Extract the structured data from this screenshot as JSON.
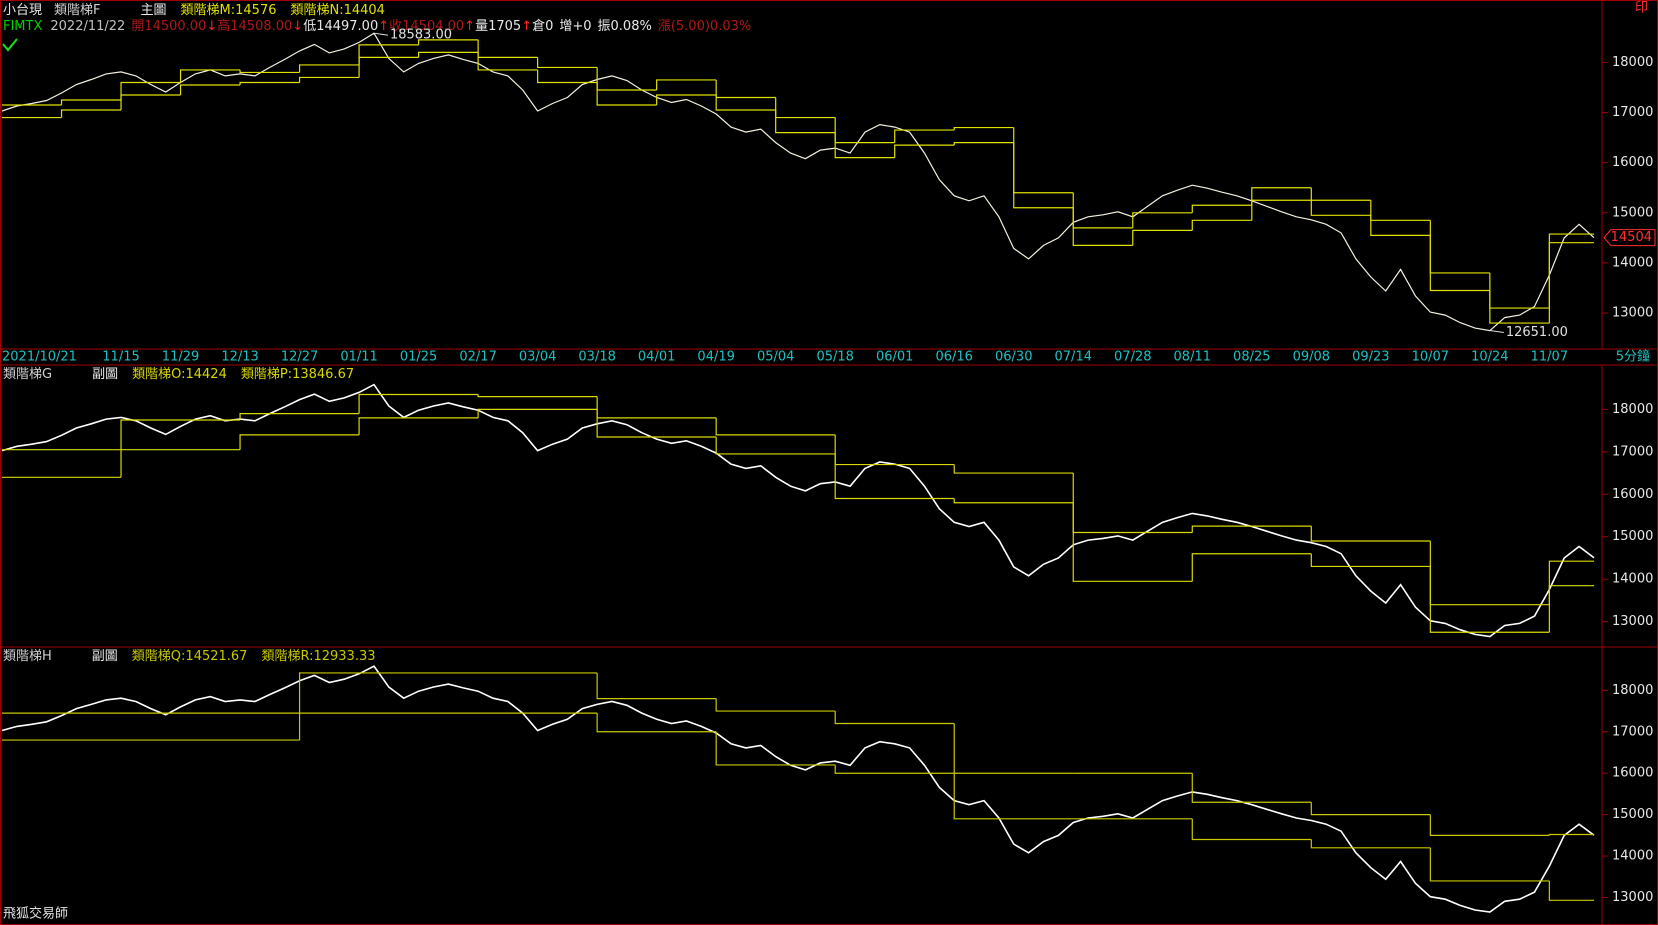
{
  "print_button": "印",
  "brand": "飛狐交易師",
  "chart_data": [
    {
      "type": "line",
      "title": "小台現",
      "indicator": "類階梯F",
      "view": "主圖",
      "symbol": "FIMTX",
      "symbol_color": "#00d000",
      "date": "2022/11/22",
      "quote": [
        {
          "text": "開14500.00",
          "color": "#b01818"
        },
        {
          "text": "↓",
          "color": "#ff2020"
        },
        {
          "text": "高14508.00",
          "color": "#b01818"
        },
        {
          "text": "↓",
          "color": "#ff2020"
        },
        {
          "text": "低14497.00",
          "color": "#e8e8e8"
        },
        {
          "text": "↑",
          "color": "#ff2020"
        },
        {
          "text": "收14504.00",
          "color": "#b01818"
        },
        {
          "text": "↑",
          "color": "#ff2020"
        },
        {
          "text": "量1705",
          "color": "#e8e8e8"
        },
        {
          "text": "↑",
          "color": "#ff2020"
        },
        {
          "text": "倉0",
          "color": "#e8e8e8"
        },
        {
          "text": "增+0",
          "color": "#e8e8e8"
        },
        {
          "text": "振0.08%",
          "color": "#e8e8e8"
        },
        {
          "text": "漲(5.00)0.03%",
          "color": "#b01818"
        }
      ],
      "high_label": "18583.00",
      "low_label": "12651.00",
      "last_label": "14504",
      "period": "5分鐘",
      "xlim": [
        0,
        107
      ],
      "xticks": [
        {
          "value": 0,
          "label": "2021/10/21"
        },
        {
          "value": 8,
          "label": "11/15"
        },
        {
          "value": 12,
          "label": "11/29"
        },
        {
          "value": 16,
          "label": "12/13"
        },
        {
          "value": 20,
          "label": "12/27"
        },
        {
          "value": 24,
          "label": "01/11"
        },
        {
          "value": 28,
          "label": "01/25"
        },
        {
          "value": 32,
          "label": "02/17"
        },
        {
          "value": 36,
          "label": "03/04"
        },
        {
          "value": 40,
          "label": "03/18"
        },
        {
          "value": 44,
          "label": "04/01"
        },
        {
          "value": 48,
          "label": "04/19"
        },
        {
          "value": 52,
          "label": "05/04"
        },
        {
          "value": 56,
          "label": "05/18"
        },
        {
          "value": 60,
          "label": "06/01"
        },
        {
          "value": 64,
          "label": "06/16"
        },
        {
          "value": 68,
          "label": "06/30"
        },
        {
          "value": 72,
          "label": "07/14"
        },
        {
          "value": 76,
          "label": "07/28"
        },
        {
          "value": 80,
          "label": "08/11"
        },
        {
          "value": 84,
          "label": "08/25"
        },
        {
          "value": 88,
          "label": "09/08"
        },
        {
          "value": 92,
          "label": "09/23"
        },
        {
          "value": 96,
          "label": "10/07"
        },
        {
          "value": 100,
          "label": "10/24"
        },
        {
          "value": 104,
          "label": "11/07"
        }
      ],
      "ylim": [
        12283,
        19245
      ],
      "yticks": [
        13000,
        14000,
        15000,
        16000,
        17000,
        18000
      ],
      "series": [
        {
          "color": "#f4f0e0",
          "values": [
            17030,
            17130,
            17180,
            17240,
            17390,
            17560,
            17660,
            17770,
            17810,
            17730,
            17560,
            17410,
            17600,
            17770,
            17850,
            17730,
            17770,
            17730,
            17900,
            18060,
            18230,
            18360,
            18190,
            18270,
            18400,
            18583,
            18080,
            17810,
            17980,
            18080,
            18150,
            18060,
            17980,
            17810,
            17730,
            17450,
            17030,
            17180,
            17300,
            17560,
            17660,
            17730,
            17640,
            17450,
            17300,
            17200,
            17260,
            17130,
            16970,
            16710,
            16610,
            16670,
            16400,
            16190,
            16080,
            16250,
            16290,
            16190,
            16610,
            16760,
            16710,
            16610,
            16190,
            15660,
            15340,
            15240,
            15340,
            14920,
            14290,
            14080,
            14350,
            14500,
            14810,
            14920,
            14960,
            15020,
            14920,
            15130,
            15340,
            15450,
            15550,
            15490,
            15410,
            15340,
            15240,
            15130,
            15020,
            14920,
            14860,
            14770,
            14600,
            14080,
            13720,
            13440,
            13870,
            13340,
            13020,
            12960,
            12810,
            12700,
            12651,
            12910,
            12960,
            13130,
            13760,
            14500,
            14770,
            14504
          ]
        },
        {
          "name": "類階梯M:",
          "color": "#e0e000",
          "x": [
            0,
            4,
            8,
            12,
            16,
            20,
            24,
            28,
            32,
            36,
            40,
            44,
            48,
            52,
            56,
            60,
            64,
            68,
            72,
            76,
            80,
            84,
            88,
            92,
            96,
            100,
            104
          ],
          "values": [
            17150,
            17250,
            17600,
            17850,
            17800,
            17950,
            18350,
            18450,
            18100,
            17900,
            17450,
            17650,
            17300,
            16900,
            16400,
            16650,
            16700,
            15400,
            14700,
            15000,
            15150,
            15500,
            15250,
            14850,
            13800,
            13100,
            14576
          ]
        },
        {
          "name": "類階梯N:",
          "color": "#e0e000",
          "x": [
            0,
            4,
            8,
            12,
            16,
            20,
            24,
            28,
            32,
            36,
            40,
            44,
            48,
            52,
            56,
            60,
            64,
            68,
            72,
            76,
            80,
            84,
            88,
            92,
            96,
            100,
            104
          ],
          "values": [
            16900,
            17050,
            17350,
            17550,
            17600,
            17700,
            18100,
            18200,
            17850,
            17600,
            17150,
            17350,
            17050,
            16600,
            16100,
            16350,
            16400,
            15100,
            14350,
            14650,
            14850,
            15250,
            14950,
            14550,
            13450,
            12800,
            14404
          ]
        }
      ]
    },
    {
      "type": "line",
      "indicator": "類階梯G",
      "view": "副圖",
      "xlim": [
        0,
        107
      ],
      "ylim": [
        12403,
        19045
      ],
      "yticks": [
        13000,
        14000,
        15000,
        16000,
        17000,
        18000
      ],
      "series": [
        {
          "color": "#ffffff",
          "values": [
            17030,
            17130,
            17180,
            17240,
            17390,
            17560,
            17660,
            17770,
            17810,
            17730,
            17560,
            17410,
            17600,
            17770,
            17850,
            17730,
            17770,
            17730,
            17900,
            18060,
            18230,
            18360,
            18190,
            18270,
            18400,
            18583,
            18080,
            17810,
            17980,
            18080,
            18150,
            18060,
            17980,
            17810,
            17730,
            17450,
            17030,
            17180,
            17300,
            17560,
            17660,
            17730,
            17640,
            17450,
            17300,
            17200,
            17260,
            17130,
            16970,
            16710,
            16610,
            16670,
            16400,
            16190,
            16080,
            16250,
            16290,
            16190,
            16610,
            16760,
            16710,
            16610,
            16190,
            15660,
            15340,
            15240,
            15340,
            14920,
            14290,
            14080,
            14350,
            14500,
            14810,
            14920,
            14960,
            15020,
            14920,
            15130,
            15340,
            15450,
            15550,
            15490,
            15410,
            15340,
            15240,
            15130,
            15020,
            14920,
            14860,
            14770,
            14600,
            14080,
            13720,
            13440,
            13870,
            13340,
            13020,
            12960,
            12810,
            12700,
            12651,
            12910,
            12960,
            13130,
            13760,
            14500,
            14770,
            14504
          ]
        },
        {
          "name": "類階梯O:",
          "color": "#d8d800",
          "x": [
            0,
            8,
            16,
            24,
            32,
            40,
            48,
            56,
            64,
            72,
            80,
            88,
            96,
            104
          ],
          "values": [
            17050,
            17750,
            17900,
            18350,
            18300,
            17800,
            17400,
            16700,
            16500,
            15100,
            15250,
            14900,
            13400,
            14424
          ]
        },
        {
          "name": "類階梯P:",
          "color": "#d8d800",
          "x": [
            0,
            8,
            16,
            24,
            32,
            40,
            48,
            56,
            64,
            72,
            80,
            88,
            96,
            104
          ],
          "values": [
            16400,
            17050,
            17400,
            17800,
            18000,
            17350,
            16950,
            15900,
            15800,
            13950,
            14600,
            14300,
            12750,
            13846.67
          ]
        }
      ]
    },
    {
      "type": "line",
      "indicator": "類階梯H",
      "view": "副圖",
      "xlim": [
        0,
        107
      ],
      "ylim": [
        12337,
        19046
      ],
      "yticks": [
        13000,
        14000,
        15000,
        16000,
        17000,
        18000
      ],
      "series": [
        {
          "color": "#ffffff",
          "values": [
            17030,
            17130,
            17180,
            17240,
            17390,
            17560,
            17660,
            17770,
            17810,
            17730,
            17560,
            17410,
            17600,
            17770,
            17850,
            17730,
            17770,
            17730,
            17900,
            18060,
            18230,
            18360,
            18190,
            18270,
            18400,
            18583,
            18080,
            17810,
            17980,
            18080,
            18150,
            18060,
            17980,
            17810,
            17730,
            17450,
            17030,
            17180,
            17300,
            17560,
            17660,
            17730,
            17640,
            17450,
            17300,
            17200,
            17260,
            17130,
            16970,
            16710,
            16610,
            16670,
            16400,
            16190,
            16080,
            16250,
            16290,
            16190,
            16610,
            16760,
            16710,
            16610,
            16190,
            15660,
            15340,
            15240,
            15340,
            14920,
            14290,
            14080,
            14350,
            14500,
            14810,
            14920,
            14960,
            15020,
            14920,
            15130,
            15340,
            15450,
            15550,
            15490,
            15410,
            15340,
            15240,
            15130,
            15020,
            14920,
            14860,
            14770,
            14600,
            14080,
            13720,
            13440,
            13870,
            13340,
            13020,
            12960,
            12810,
            12700,
            12651,
            12910,
            12960,
            13130,
            13760,
            14500,
            14770,
            14504
          ]
        },
        {
          "name": "類階梯Q:",
          "color": "#c8c800",
          "x": [
            0,
            20,
            40,
            48,
            56,
            64,
            72,
            80,
            88,
            96,
            104
          ],
          "values": [
            17450,
            18420,
            17800,
            17500,
            17200,
            16000,
            16000,
            15300,
            15000,
            14500,
            14521.67
          ]
        },
        {
          "name": "類階梯R:",
          "color": "#c8c800",
          "x": [
            0,
            20,
            40,
            48,
            56,
            64,
            72,
            80,
            88,
            96,
            104
          ],
          "values": [
            16800,
            17450,
            17000,
            16200,
            16000,
            14900,
            14900,
            14400,
            14200,
            13400,
            12933.33
          ]
        }
      ]
    }
  ]
}
